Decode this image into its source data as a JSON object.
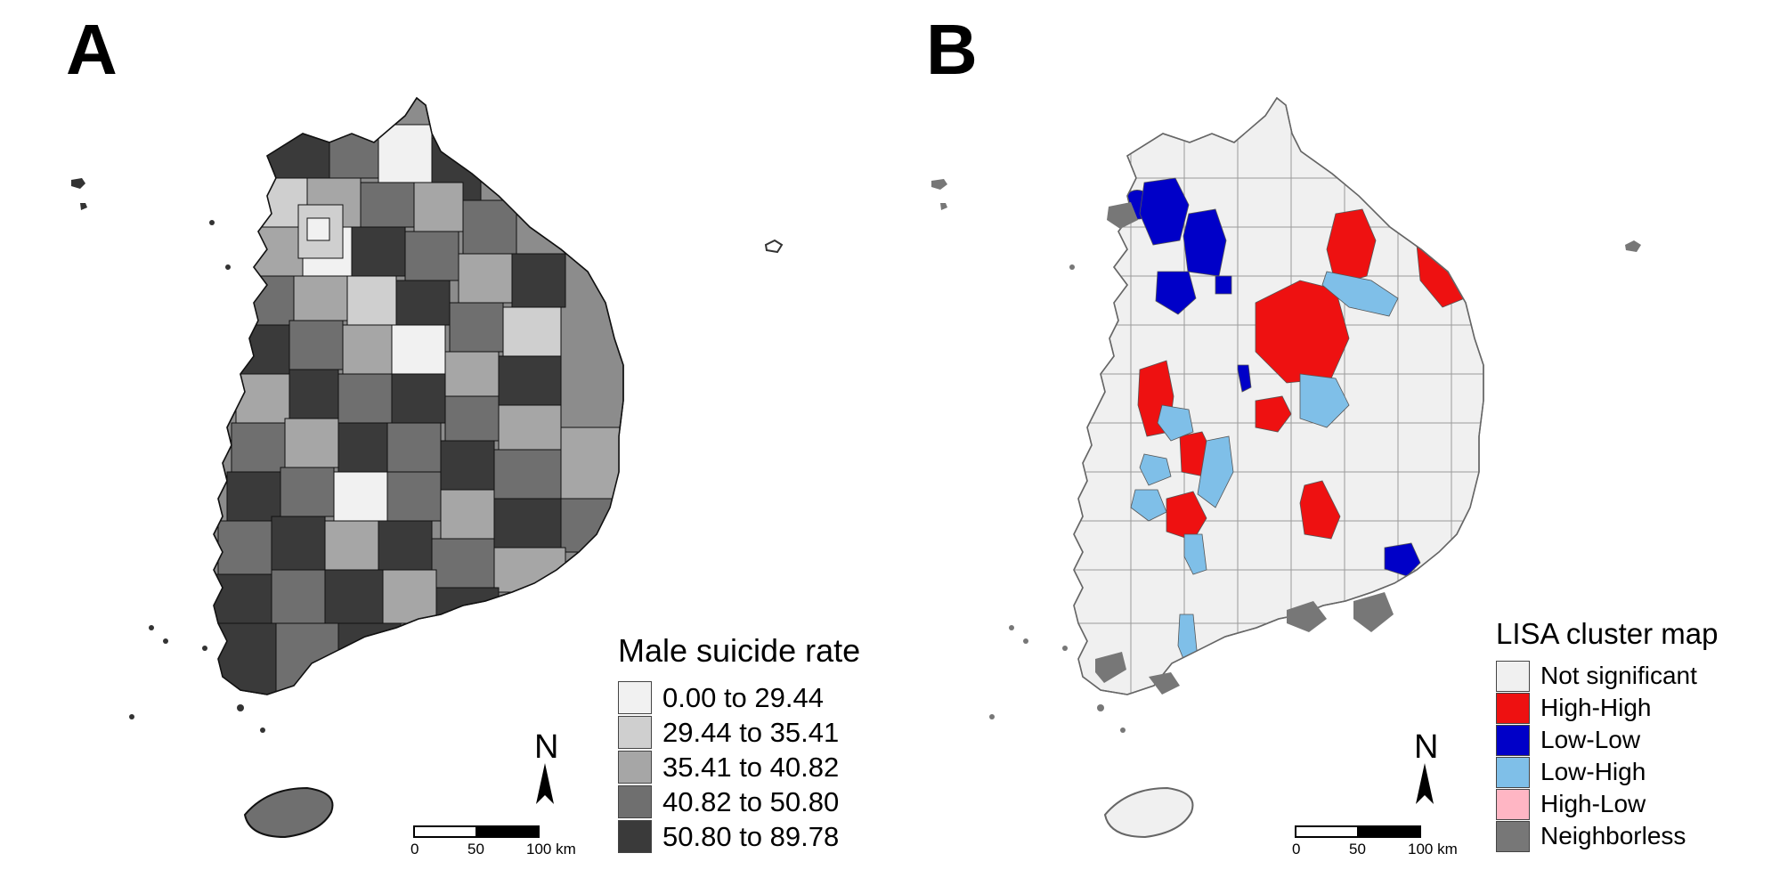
{
  "panels": {
    "a": {
      "label": "A",
      "legend_title": "Male suicide rate",
      "classes": [
        {
          "label": "0.00 to 29.44",
          "color": "#f1f1f1"
        },
        {
          "label": "29.44 to 35.41",
          "color": "#cfcfcf"
        },
        {
          "label": "35.41 to 40.82",
          "color": "#a6a6a6"
        },
        {
          "label": "40.82 to 50.80",
          "color": "#6f6f6f"
        },
        {
          "label": "50.80 to 89.78",
          "color": "#3a3a3a"
        }
      ],
      "north_label": "N",
      "scale_ticks": [
        "0",
        "50",
        "100 km"
      ]
    },
    "b": {
      "label": "B",
      "legend_title": "LISA cluster map",
      "classes": [
        {
          "label": "Not significant",
          "color": "#f0f0f0"
        },
        {
          "label": "High-High",
          "color": "#ee1111"
        },
        {
          "label": "Low-Low",
          "color": "#0000c8"
        },
        {
          "label": "Low-High",
          "color": "#7fbfe8"
        },
        {
          "label": "High-Low",
          "color": "#ffb6c4"
        },
        {
          "label": "Neighborless",
          "color": "#777777"
        }
      ],
      "north_label": "N",
      "scale_ticks": [
        "0",
        "50",
        "100 km"
      ]
    }
  }
}
